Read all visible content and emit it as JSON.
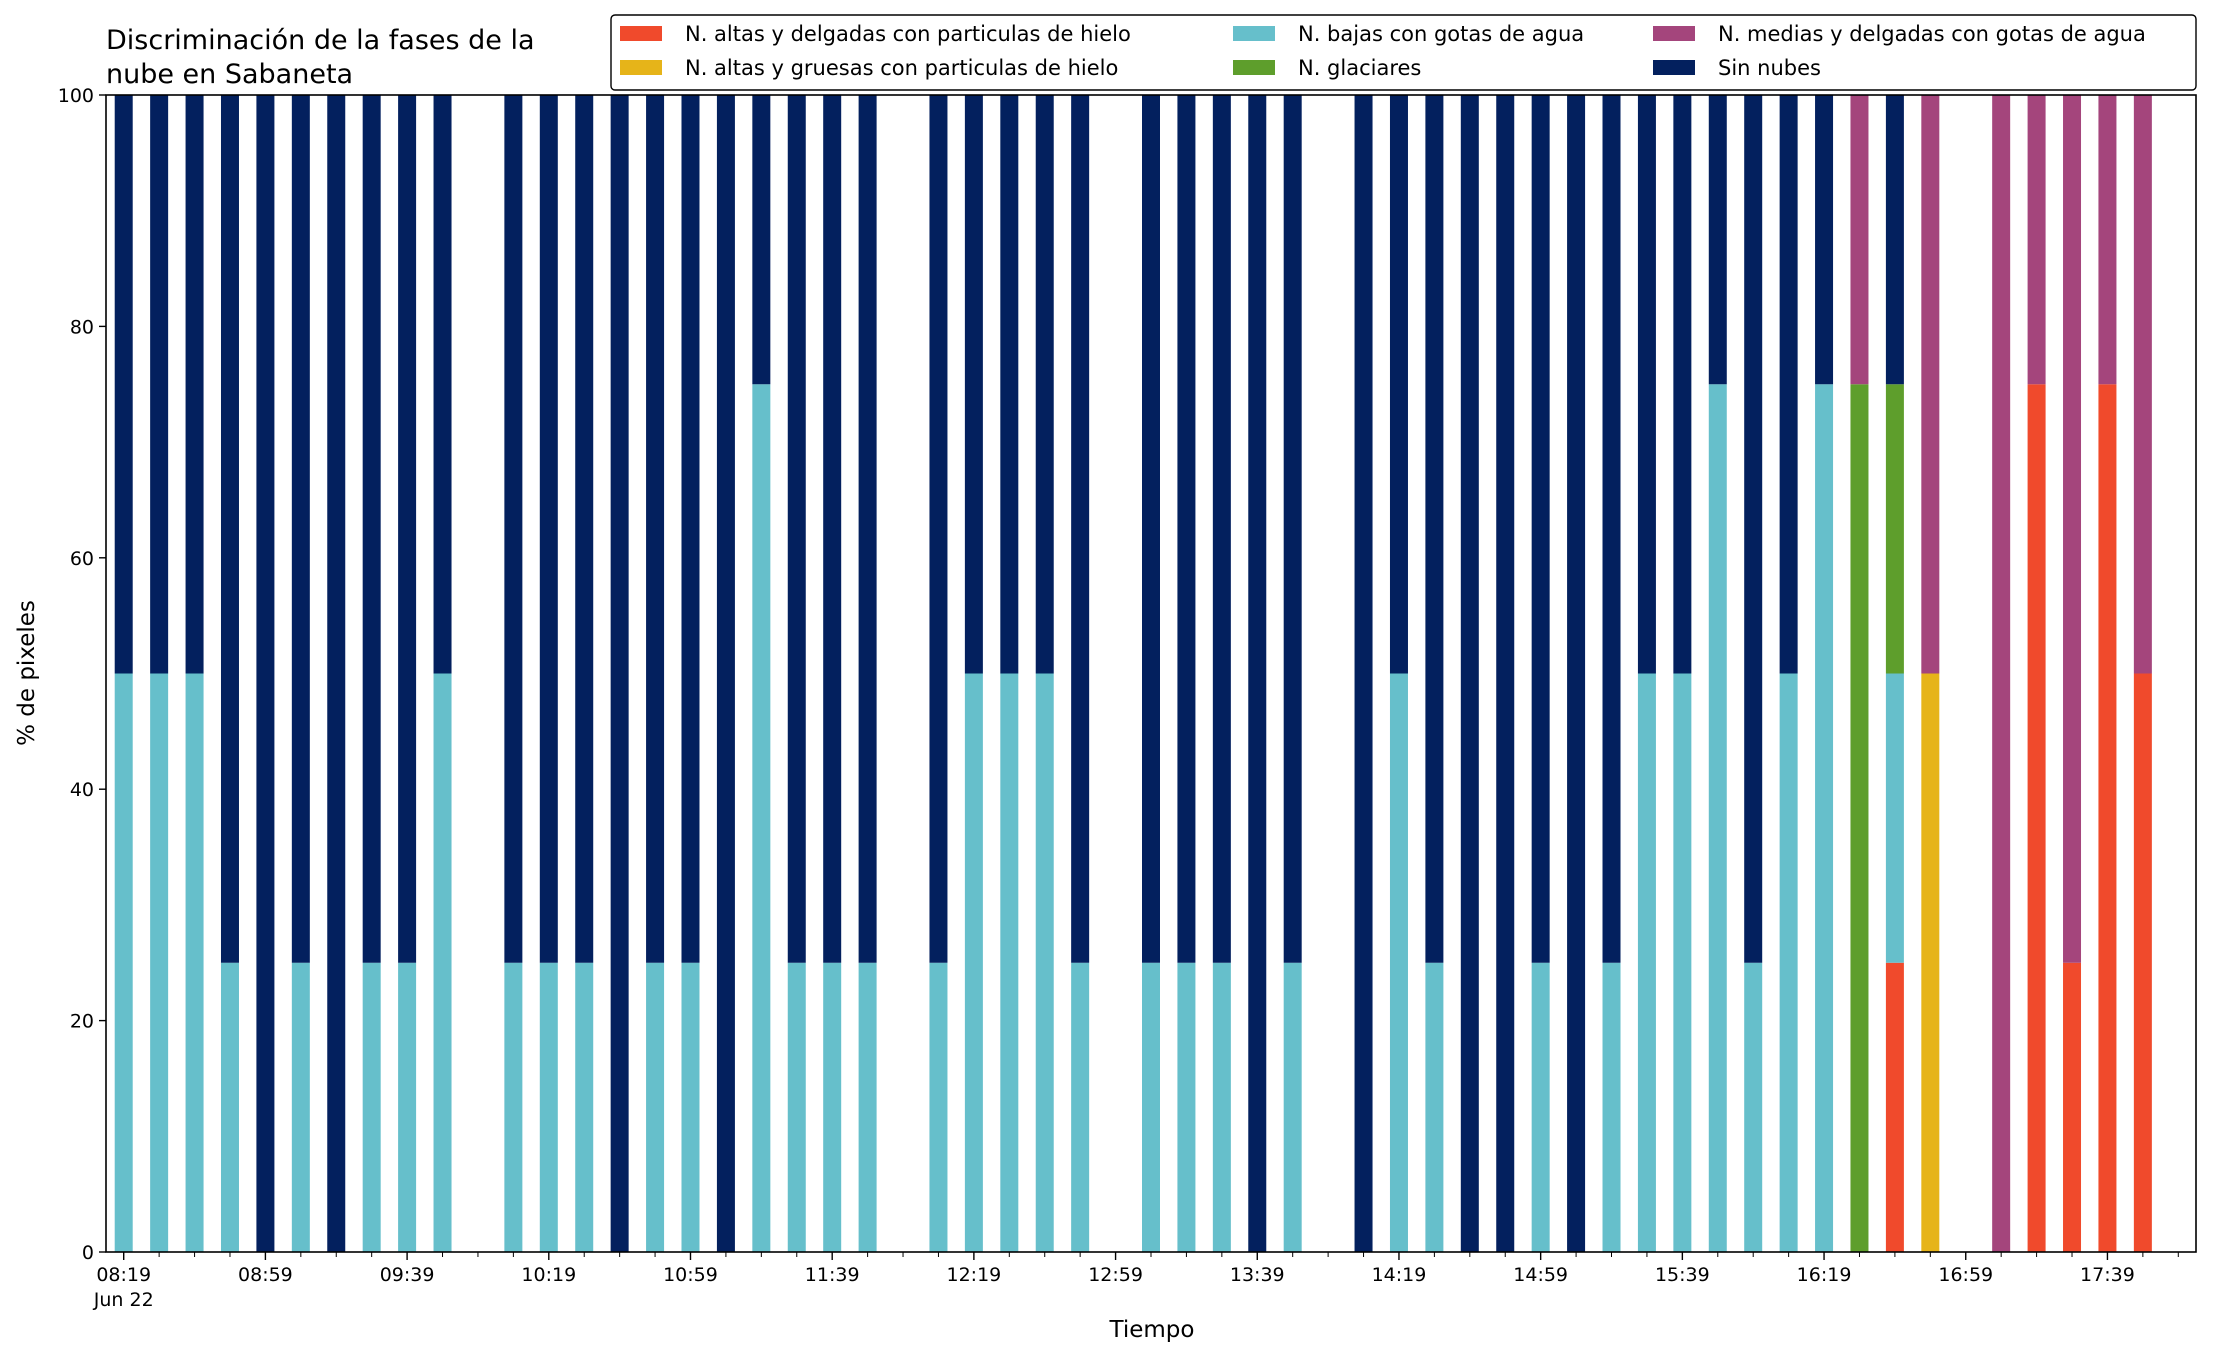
{
  "chart_data": {
    "type": "bar",
    "stacked": true,
    "title_lines": [
      "Discriminación de la fases de la",
      "nube en Sabaneta"
    ],
    "xlabel": "Tiempo",
    "ylabel": "% de pixeles",
    "ylim": [
      0,
      100
    ],
    "yticks": [
      0,
      20,
      40,
      60,
      80,
      100
    ],
    "x_start": "08:19",
    "x_interval_minutes": 10,
    "x_slots": 59,
    "x_tick_labels": [
      "08:19",
      "08:59",
      "09:39",
      "10:19",
      "10:59",
      "11:39",
      "12:19",
      "12:59",
      "13:39",
      "14:19",
      "14:59",
      "15:39",
      "16:19",
      "16:59",
      "17:39"
    ],
    "x_tick_sublabel": "Jun 22",
    "legend_position": "top-right",
    "legend_order": [
      "n_altas_delgadas",
      "n_altas_gruesas",
      "n_bajas",
      "n_glaciares",
      "n_medias",
      "sin_nubes"
    ],
    "stack_order": [
      "n_altas_delgadas",
      "n_altas_gruesas",
      "n_bajas",
      "n_glaciares",
      "n_medias",
      "sin_nubes"
    ],
    "series": [
      {
        "key": "n_altas_delgadas",
        "name": "N. altas y delgadas con particulas de hielo",
        "color": "#f04a2c"
      },
      {
        "key": "n_altas_gruesas",
        "name": "N. altas y gruesas con particulas de hielo",
        "color": "#e6b419"
      },
      {
        "key": "n_bajas",
        "name": "N. bajas con gotas de agua",
        "color": "#66bfcb"
      },
      {
        "key": "n_glaciares",
        "name": "N. glaciares",
        "color": "#5e9e2c"
      },
      {
        "key": "n_medias",
        "name": "N. medias y delgadas con gotas de agua",
        "color": "#a4457c"
      },
      {
        "key": "sin_nubes",
        "name": "Sin nubes",
        "color": "#03205e"
      }
    ],
    "bars": [
      {
        "time": "08:19",
        "n_bajas": 50,
        "sin_nubes": 50
      },
      {
        "time": "08:29",
        "n_bajas": 50,
        "sin_nubes": 50
      },
      {
        "time": "08:39",
        "n_bajas": 50,
        "sin_nubes": 50
      },
      {
        "time": "08:49",
        "n_bajas": 25,
        "sin_nubes": 75
      },
      {
        "time": "08:59",
        "sin_nubes": 100
      },
      {
        "time": "09:09",
        "n_bajas": 25,
        "sin_nubes": 75
      },
      {
        "time": "09:19",
        "sin_nubes": 100
      },
      {
        "time": "09:29",
        "n_bajas": 25,
        "sin_nubes": 75
      },
      {
        "time": "09:39",
        "n_bajas": 25,
        "sin_nubes": 75
      },
      {
        "time": "09:49",
        "n_bajas": 50,
        "sin_nubes": 50
      },
      {
        "time": "10:09",
        "n_bajas": 25,
        "sin_nubes": 75
      },
      {
        "time": "10:19",
        "n_bajas": 25,
        "sin_nubes": 75
      },
      {
        "time": "10:29",
        "n_bajas": 25,
        "sin_nubes": 75
      },
      {
        "time": "10:39",
        "sin_nubes": 100
      },
      {
        "time": "10:49",
        "n_bajas": 25,
        "sin_nubes": 75
      },
      {
        "time": "10:59",
        "n_bajas": 25,
        "sin_nubes": 75
      },
      {
        "time": "11:09",
        "sin_nubes": 100
      },
      {
        "time": "11:19",
        "n_bajas": 75,
        "sin_nubes": 25
      },
      {
        "time": "11:29",
        "n_bajas": 25,
        "sin_nubes": 75
      },
      {
        "time": "11:39",
        "n_bajas": 25,
        "sin_nubes": 75
      },
      {
        "time": "11:49",
        "n_bajas": 25,
        "sin_nubes": 75
      },
      {
        "time": "12:09",
        "n_bajas": 25,
        "sin_nubes": 75
      },
      {
        "time": "12:19",
        "n_bajas": 50,
        "sin_nubes": 50
      },
      {
        "time": "12:29",
        "n_bajas": 50,
        "sin_nubes": 50
      },
      {
        "time": "12:39",
        "n_bajas": 50,
        "sin_nubes": 50
      },
      {
        "time": "12:49",
        "n_bajas": 25,
        "sin_nubes": 75
      },
      {
        "time": "13:09",
        "n_bajas": 25,
        "sin_nubes": 75
      },
      {
        "time": "13:19",
        "n_bajas": 25,
        "sin_nubes": 75
      },
      {
        "time": "13:29",
        "n_bajas": 25,
        "sin_nubes": 75
      },
      {
        "time": "13:39",
        "sin_nubes": 100
      },
      {
        "time": "13:49",
        "n_bajas": 25,
        "sin_nubes": 75
      },
      {
        "time": "14:09",
        "sin_nubes": 100
      },
      {
        "time": "14:19",
        "n_bajas": 50,
        "sin_nubes": 50
      },
      {
        "time": "14:29",
        "n_bajas": 25,
        "sin_nubes": 75
      },
      {
        "time": "14:39",
        "sin_nubes": 100
      },
      {
        "time": "14:49",
        "sin_nubes": 100
      },
      {
        "time": "14:59",
        "n_bajas": 25,
        "sin_nubes": 75
      },
      {
        "time": "15:09",
        "sin_nubes": 100
      },
      {
        "time": "15:19",
        "n_bajas": 25,
        "sin_nubes": 75
      },
      {
        "time": "15:29",
        "n_bajas": 50,
        "sin_nubes": 50
      },
      {
        "time": "15:39",
        "n_bajas": 50,
        "sin_nubes": 50
      },
      {
        "time": "15:49",
        "n_bajas": 75,
        "sin_nubes": 25
      },
      {
        "time": "15:59",
        "n_bajas": 25,
        "sin_nubes": 75
      },
      {
        "time": "16:09",
        "n_bajas": 50,
        "sin_nubes": 50
      },
      {
        "time": "16:19",
        "n_bajas": 75,
        "sin_nubes": 25
      },
      {
        "time": "16:29",
        "n_glaciares": 75,
        "n_medias": 25
      },
      {
        "time": "16:39",
        "n_altas_delgadas": 25,
        "n_bajas": 25,
        "n_glaciares": 25,
        "sin_nubes": 25
      },
      {
        "time": "16:49",
        "n_altas_gruesas": 50,
        "n_medias": 50
      },
      {
        "time": "17:09",
        "n_medias": 100
      },
      {
        "time": "17:19",
        "n_altas_delgadas": 75,
        "n_medias": 25
      },
      {
        "time": "17:29",
        "n_altas_delgadas": 25,
        "n_medias": 75
      },
      {
        "time": "17:39",
        "n_altas_delgadas": 75,
        "n_medias": 25
      },
      {
        "time": "17:49",
        "n_altas_delgadas": 50,
        "n_medias": 50
      }
    ]
  }
}
